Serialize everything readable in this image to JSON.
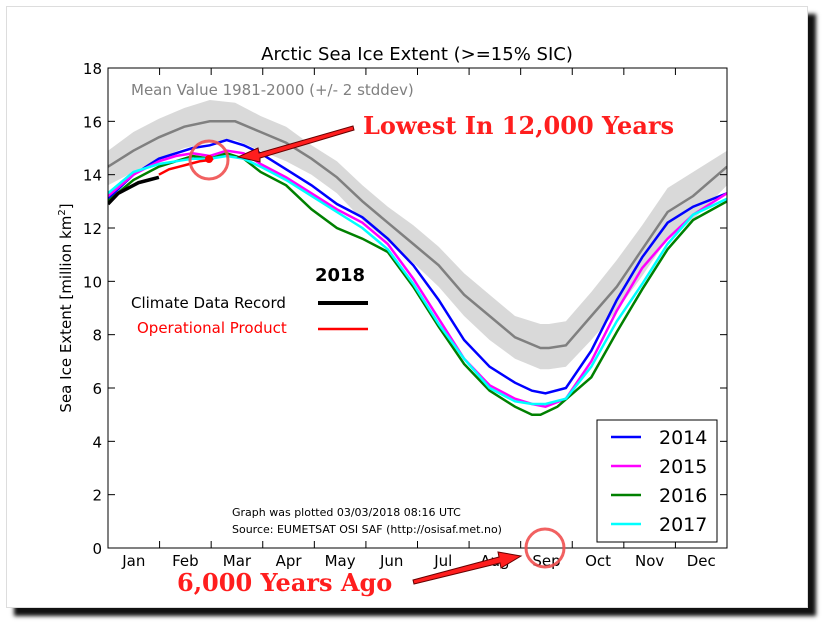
{
  "chart_data": {
    "type": "line",
    "title": "Arctic Sea Ice Extent (>=15% SIC)",
    "ylabel": "Sea Ice Extent [million km",
    "ylabel_sup": "2",
    "ylabel_end": "]",
    "ylim": [
      0,
      18
    ],
    "yticks": [
      0,
      2,
      4,
      6,
      8,
      10,
      12,
      14,
      16,
      18
    ],
    "months": [
      "Jan",
      "Feb",
      "Mar",
      "Apr",
      "May",
      "Jun",
      "Jul",
      "Aug",
      "Sep",
      "Oct",
      "Nov",
      "Dec"
    ],
    "mean_label": "Mean Value 1981-2000 (+/- 2 stddev)",
    "mean": {
      "x": [
        0,
        15,
        30,
        45,
        60,
        75,
        90,
        105,
        120,
        135,
        150,
        165,
        180,
        195,
        210,
        225,
        240,
        255,
        260,
        270,
        285,
        300,
        315,
        330,
        345,
        365
      ],
      "y": [
        14.3,
        14.9,
        15.4,
        15.8,
        16.0,
        16.0,
        15.6,
        15.2,
        14.6,
        13.9,
        13.0,
        12.2,
        11.4,
        10.6,
        9.5,
        8.7,
        7.9,
        7.5,
        7.5,
        7.6,
        8.7,
        9.8,
        11.2,
        12.6,
        13.2,
        14.3
      ]
    },
    "band": {
      "upper": [
        14.9,
        15.6,
        16.1,
        16.5,
        16.8,
        16.7,
        16.2,
        15.8,
        15.1,
        14.5,
        13.6,
        12.8,
        12.1,
        11.3,
        10.3,
        9.5,
        8.7,
        8.4,
        8.4,
        8.5,
        9.6,
        10.8,
        12.1,
        13.5,
        14.1,
        14.9
      ],
      "lower": [
        13.6,
        14.1,
        14.6,
        15.0,
        15.2,
        15.3,
        14.9,
        14.5,
        14.0,
        13.3,
        12.3,
        11.5,
        10.7,
        9.8,
        8.7,
        7.8,
        7.1,
        6.7,
        6.7,
        6.8,
        7.8,
        8.9,
        10.2,
        11.6,
        12.3,
        13.6
      ]
    },
    "series": [
      {
        "name": "2014",
        "color": "#0000ff",
        "x": [
          0,
          15,
          30,
          40,
          50,
          60,
          70,
          80,
          90,
          105,
          120,
          135,
          150,
          165,
          180,
          195,
          210,
          225,
          240,
          250,
          258,
          270,
          285,
          300,
          315,
          330,
          345,
          365
        ],
        "y": [
          13.1,
          14.0,
          14.6,
          14.8,
          15.0,
          15.1,
          15.3,
          15.1,
          14.8,
          14.2,
          13.6,
          12.9,
          12.4,
          11.6,
          10.6,
          9.3,
          7.8,
          6.8,
          6.2,
          5.9,
          5.8,
          6.0,
          7.4,
          9.3,
          10.9,
          12.2,
          12.8,
          13.3
        ]
      },
      {
        "name": "2015",
        "color": "#ff00ff",
        "x": [
          0,
          15,
          30,
          40,
          50,
          60,
          70,
          80,
          90,
          105,
          120,
          135,
          150,
          165,
          180,
          195,
          210,
          225,
          240,
          250,
          258,
          270,
          285,
          300,
          315,
          330,
          345,
          365
        ],
        "y": [
          13.2,
          14.0,
          14.5,
          14.7,
          14.8,
          14.7,
          14.9,
          14.8,
          14.4,
          13.9,
          13.3,
          12.7,
          12.2,
          11.4,
          10.1,
          8.6,
          7.1,
          6.1,
          5.6,
          5.4,
          5.3,
          5.6,
          7.0,
          8.9,
          10.5,
          11.6,
          12.5,
          13.3
        ]
      },
      {
        "name": "2016",
        "color": "#008000",
        "x": [
          0,
          15,
          30,
          40,
          50,
          60,
          70,
          80,
          90,
          105,
          120,
          135,
          150,
          165,
          180,
          195,
          210,
          225,
          240,
          250,
          255,
          265,
          285,
          300,
          315,
          330,
          345,
          365
        ],
        "y": [
          13.0,
          13.8,
          14.3,
          14.5,
          14.7,
          14.6,
          14.8,
          14.6,
          14.1,
          13.6,
          12.7,
          12.0,
          11.6,
          11.1,
          9.8,
          8.3,
          6.9,
          5.9,
          5.3,
          5.0,
          5.0,
          5.3,
          6.4,
          8.1,
          9.7,
          11.2,
          12.3,
          13.0
        ]
      },
      {
        "name": "2017",
        "color": "#00ffff",
        "x": [
          0,
          15,
          30,
          40,
          50,
          60,
          70,
          80,
          90,
          105,
          120,
          135,
          150,
          165,
          180,
          195,
          210,
          225,
          240,
          250,
          258,
          270,
          285,
          300,
          315,
          330,
          345,
          365
        ],
        "y": [
          13.3,
          14.1,
          14.4,
          14.5,
          14.6,
          14.6,
          14.7,
          14.6,
          14.3,
          13.8,
          13.2,
          12.6,
          12.0,
          11.2,
          9.9,
          8.4,
          7.1,
          6.0,
          5.5,
          5.4,
          5.4,
          5.6,
          6.8,
          8.5,
          9.9,
          11.4,
          12.5,
          13.1
        ]
      }
    ],
    "y2018": [
      {
        "name": "Climate Data Record",
        "color": "#000000",
        "x": [
          0,
          6,
          12,
          18,
          24,
          30
        ],
        "y": [
          12.9,
          13.3,
          13.5,
          13.7,
          13.8,
          13.9
        ]
      },
      {
        "name": "Operational Product",
        "color": "#ff0000",
        "x": [
          30,
          36,
          42,
          48,
          54,
          60,
          62
        ],
        "y": [
          14.0,
          14.2,
          14.3,
          14.4,
          14.5,
          14.55,
          14.6
        ]
      }
    ],
    "inset_legend_title": "2018",
    "legend": {
      "position": "bottom-right"
    },
    "footnote_1": "Graph was plotted 03/03/2018 08:16 UTC",
    "footnote_2": "Source: EUMETSAT OSI SAF (http://osisaf.met.no)"
  },
  "annotations": {
    "top": "Lowest In 12,000 Years",
    "bottom": "6,000 Years Ago",
    "highlight_color": "#f05050"
  }
}
